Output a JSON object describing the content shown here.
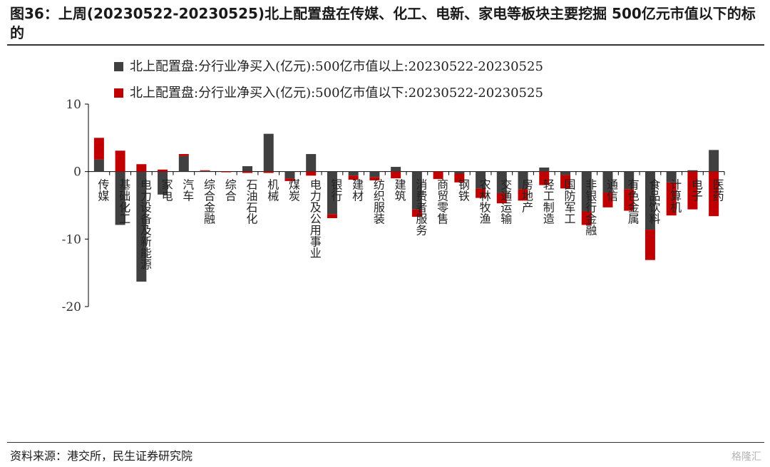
{
  "title": "图36：上周(20230522-20230525)北上配置盘在传媒、化工、电新、家电等板块主要挖掘 500亿元市值以下的标的",
  "source": "资料来源：港交所，民生证券研究院",
  "watermark": "格隆汇",
  "colors": {
    "above": "#404040",
    "below": "#c00000",
    "axis": "#000000"
  },
  "chart_data": {
    "type": "bar",
    "stacked": true,
    "ylim": [
      -20,
      10
    ],
    "yticks": [
      10,
      0,
      -10,
      -20
    ],
    "legend_position": "top",
    "grid": false,
    "categories": [
      "传媒",
      "基础化工",
      "电力设备及新能源",
      "家电",
      "汽车",
      "综合金融",
      "综合",
      "石油石化",
      "机械",
      "煤炭",
      "电力及公用事业",
      "银行",
      "建材",
      "纺织服装",
      "建筑",
      "消费者服务",
      "商贸零售",
      "钢铁",
      "农林牧渔",
      "交通运输",
      "房地产",
      "轻工制造",
      "国防军工",
      "非银行金融",
      "通信",
      "有色金属",
      "食品饮料",
      "计算机",
      "电子",
      "医药"
    ],
    "series": [
      {
        "name": "北上配置盘:分行业净买入(亿元):500亿市值以上:20230522-20230525",
        "values": [
          1.8,
          -7.9,
          -16.3,
          -3.4,
          2.3,
          0.1,
          0,
          0.8,
          5.6,
          -1.0,
          2.6,
          -6.3,
          -0.6,
          -0.8,
          0.7,
          -5.6,
          0,
          -0.3,
          -2.5,
          -3.2,
          -2.6,
          0.6,
          -0.5,
          -5.9,
          -3.1,
          -2.6,
          -8.6,
          -1.6,
          0.2,
          3.2
        ]
      },
      {
        "name": "北上配置盘:分行业净买入(亿元):500亿市值以下:20230522-20230525",
        "values": [
          3.2,
          3.1,
          1.1,
          0.3,
          0.3,
          0.1,
          -0.1,
          -0.2,
          -0.2,
          -0.4,
          -0.6,
          -0.6,
          -0.6,
          -0.5,
          -1.0,
          -1.1,
          -1.1,
          -1.3,
          -1.4,
          -1.5,
          -1.7,
          -2.0,
          -2.0,
          -2.0,
          -2.2,
          -3.2,
          -4.5,
          -4.9,
          -5.6,
          -6.6
        ]
      }
    ]
  }
}
